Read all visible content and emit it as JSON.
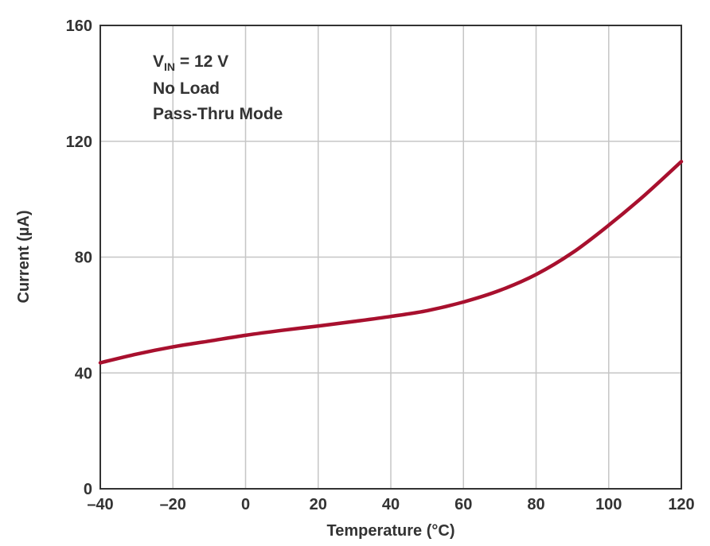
{
  "chart_data": {
    "type": "line",
    "title": "",
    "xlabel": "Temperature (°C)",
    "ylabel": "Current (µA)",
    "xlim": [
      -40,
      120
    ],
    "ylim": [
      0,
      160
    ],
    "x_ticks": [
      "–40",
      "–20",
      "0",
      "20",
      "40",
      "60",
      "80",
      "100",
      "120"
    ],
    "y_ticks": [
      "0",
      "40",
      "80",
      "120",
      "160"
    ],
    "x_tick_values": [
      -40,
      -20,
      0,
      20,
      40,
      60,
      80,
      100,
      120
    ],
    "y_tick_values": [
      0,
      40,
      80,
      120,
      160
    ],
    "grid": true,
    "annotations": {
      "vin_prefix": "V",
      "vin_subscript": "IN",
      "vin_suffix": " = 12 V",
      "load": "No Load",
      "mode": "Pass-Thru Mode"
    },
    "series": [
      {
        "color": "#a8102e",
        "x": [
          -40,
          -30,
          -20,
          -10,
          0,
          10,
          20,
          30,
          40,
          50,
          60,
          70,
          80,
          90,
          100,
          110,
          120
        ],
        "y": [
          43.5,
          46.5,
          49,
          51,
          53,
          54.7,
          56.2,
          57.8,
          59.5,
          61.5,
          64.5,
          68.5,
          74,
          81.5,
          91,
          101.5,
          113
        ]
      }
    ]
  }
}
